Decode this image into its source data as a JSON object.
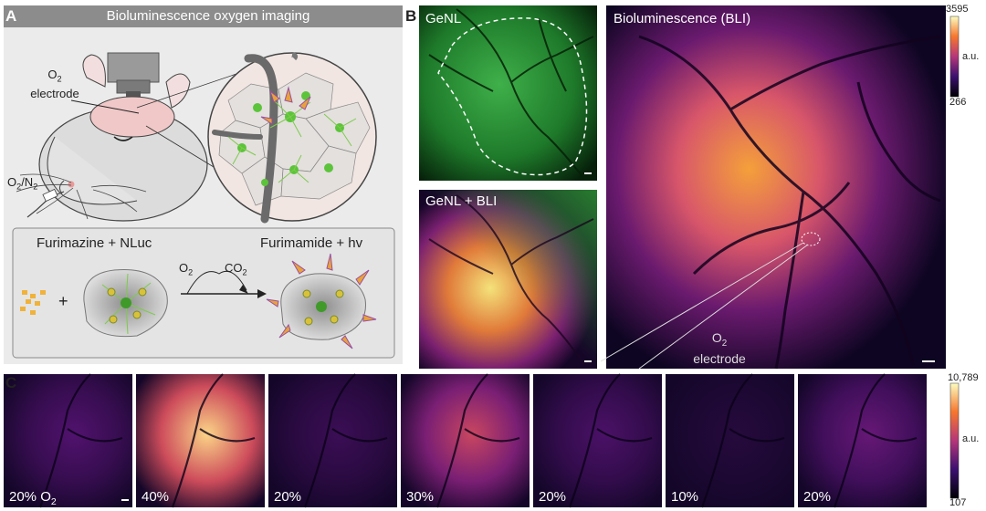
{
  "panelA": {
    "letter": "A",
    "title": "Bioluminescence oxygen imaging",
    "o2_electrode": {
      "o": "O",
      "sub": "2",
      "rest": "electrode"
    },
    "gas_label": {
      "a": "O",
      "a_sub": "2",
      "sep": "/N",
      "b_sub": "2"
    },
    "reactant": "Furimazine + NLuc",
    "product": "Furimamide + hv",
    "plus": "+",
    "arrow_top": {
      "o": "O",
      "sub": "2"
    },
    "arrow_bottom": {
      "o": "CO",
      "sub": "2"
    }
  },
  "panelB": {
    "letter": "B",
    "genl_label": "GeNL",
    "genl_bli_label": "GeNL + BLI",
    "bli_label": "Bioluminescence (BLI)",
    "colorbar": {
      "max": "3595",
      "unit": "a.u.",
      "min": "266"
    },
    "electrode_label": {
      "o": "O",
      "sub": "2",
      "rest": "electrode"
    }
  },
  "panelC": {
    "letter": "C",
    "frames": [
      {
        "label": "20% O",
        "sub": "2"
      },
      {
        "label": "40%",
        "sub": ""
      },
      {
        "label": "20%",
        "sub": ""
      },
      {
        "label": "30%",
        "sub": ""
      },
      {
        "label": "20%",
        "sub": ""
      },
      {
        "label": "10%",
        "sub": ""
      },
      {
        "label": "20%",
        "sub": ""
      }
    ],
    "colorbar": {
      "max": "10,789",
      "unit": "a.u.",
      "min": "107"
    },
    "intensity": [
      0.22,
      0.95,
      0.15,
      0.55,
      0.2,
      0.08,
      0.28
    ]
  },
  "colors": {
    "header_bg": "#8c8c8c",
    "panel_bg": "#ebebeb",
    "genl_green": "#2f9a3a",
    "inferno_low": "#0d0521",
    "inferno_mid": "#c9366b",
    "inferno_high": "#fde89c"
  }
}
